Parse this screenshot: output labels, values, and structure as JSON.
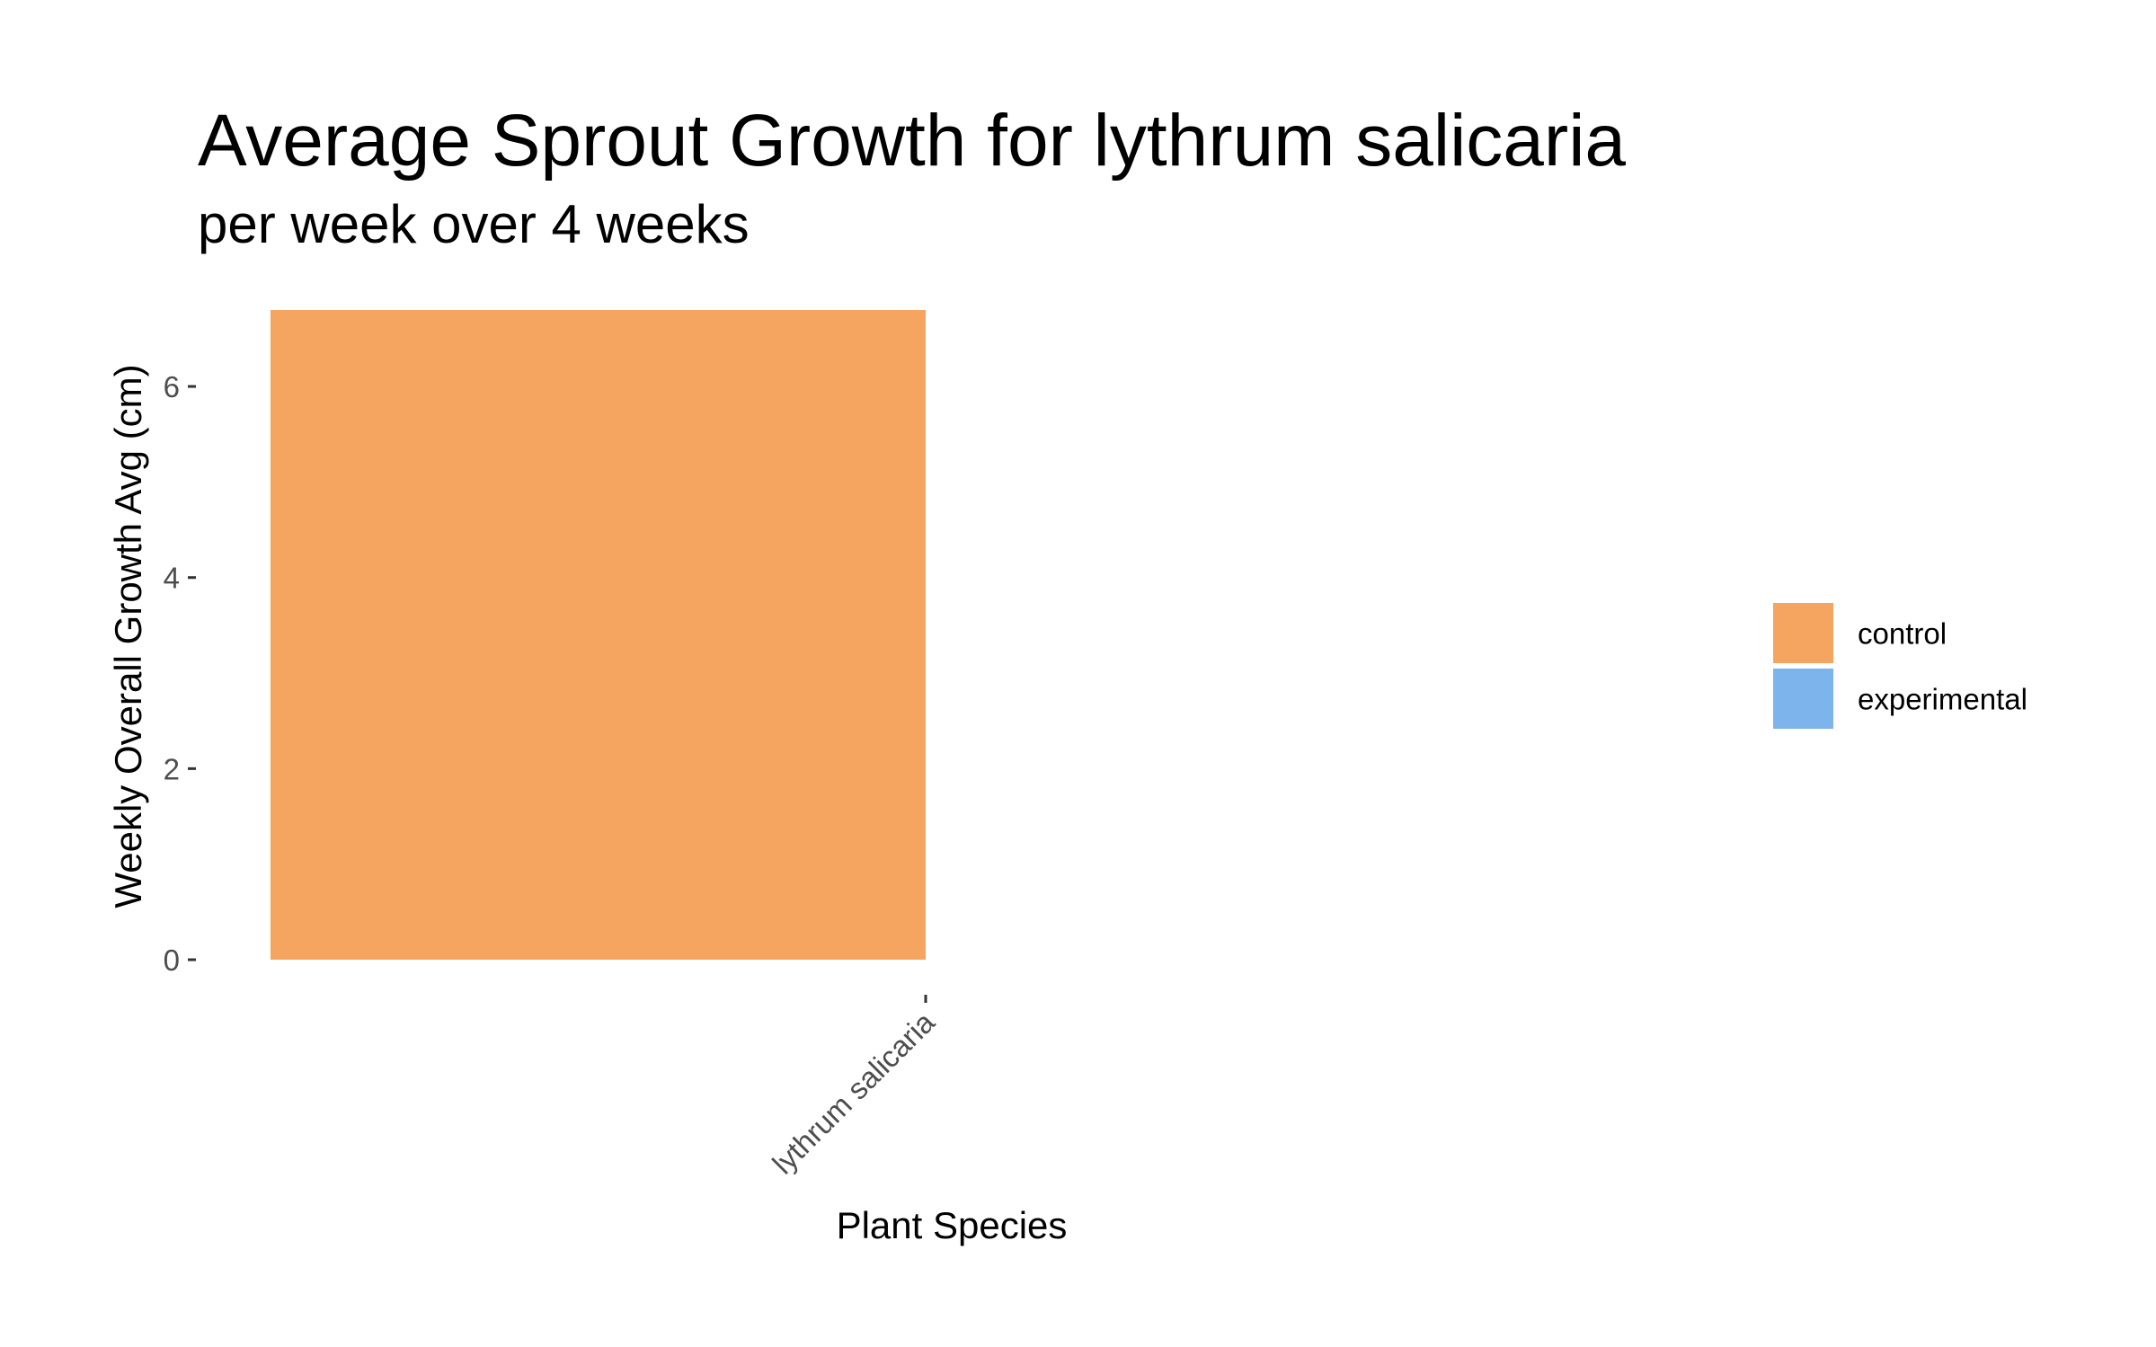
{
  "chart_data": {
    "type": "bar",
    "title": "Average Sprout Growth for lythrum salicaria",
    "subtitle": "per week over 4 weeks",
    "xlabel": "Plant Species",
    "ylabel": "Weekly Overall Growth Avg (cm)",
    "categories": [
      "lythrum salicaria"
    ],
    "series": [
      {
        "name": "control",
        "color": "#F5A55F",
        "values": [
          6.8
        ]
      },
      {
        "name": "experimental",
        "color": "#7DB4EC",
        "values": [
          null
        ]
      }
    ],
    "ylim": [
      0,
      6.8
    ],
    "yticks": [
      0,
      2,
      4,
      6
    ],
    "ytick_labels": [
      "0",
      "2",
      "4",
      "6"
    ],
    "grid": false,
    "legend_position": "right",
    "legend": [
      {
        "label": "control",
        "color": "#F5A55F"
      },
      {
        "label": "experimental",
        "color": "#7DB4EC"
      }
    ]
  }
}
